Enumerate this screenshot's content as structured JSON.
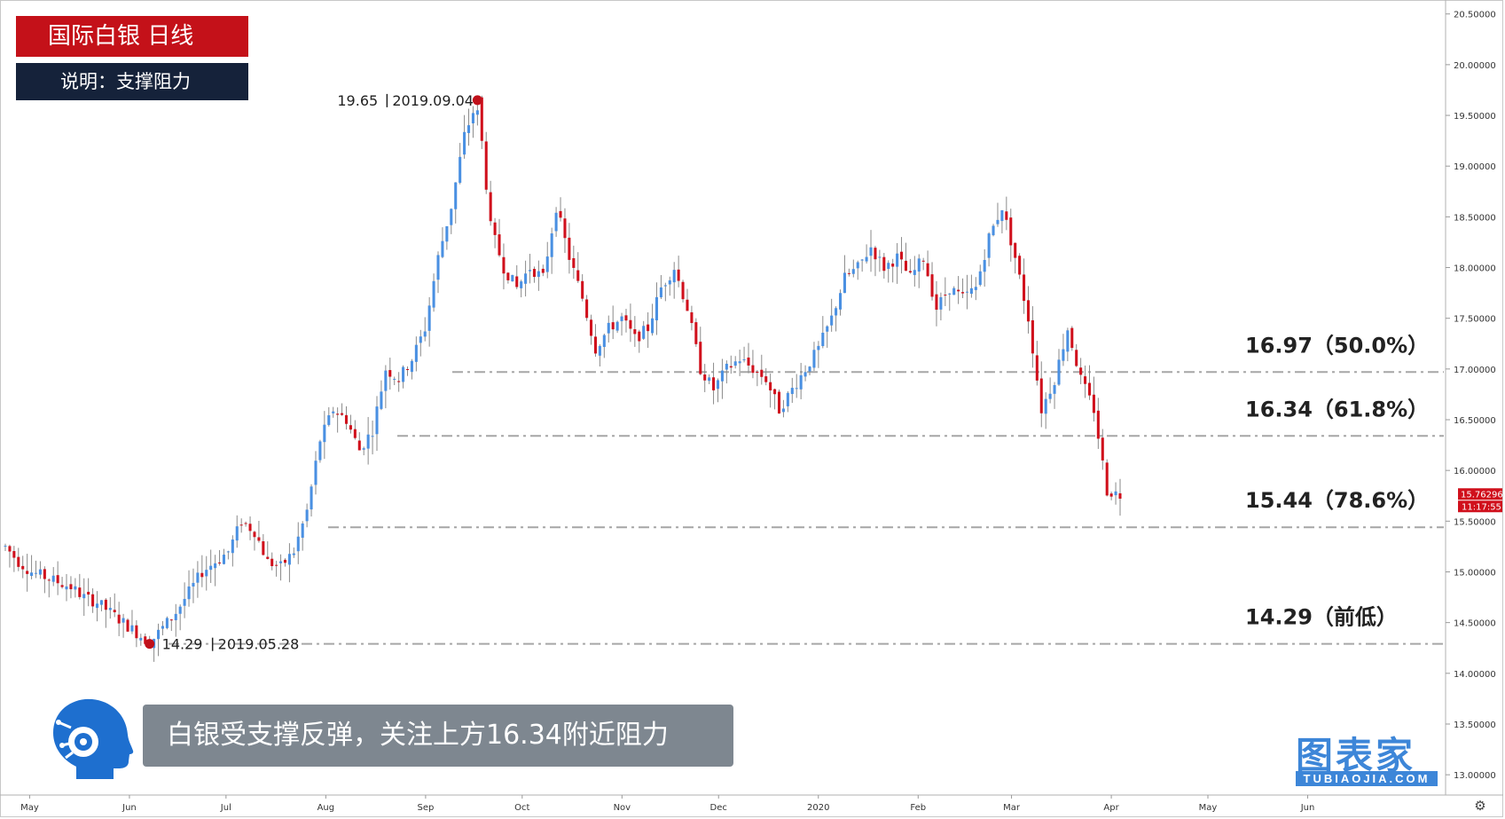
{
  "header": {
    "title": "国际白银 日线",
    "subtitle": "说明：支撑阻力"
  },
  "caption": "白银受支撑反弹，关注上方16.34附近阻力",
  "watermark": {
    "text": "图表家",
    "sub": "TUBIAOJIA.COM"
  },
  "icons": {
    "logo": "ai-head-logo-icon",
    "settings": "gear-icon"
  },
  "colors": {
    "up": "#4a90e2",
    "down": "#d0101c",
    "title_bg": "#c41119",
    "subtitle_bg": "#15223a",
    "caption_bg": "#7e8790",
    "level_line": "#a6a6a6",
    "price_badge": "#d0101c"
  },
  "chart_data": {
    "type": "candlestick",
    "instrument": "国际白银 日线",
    "ylim": [
      12.8,
      20.55
    ],
    "y_ticks": [
      "20.50000",
      "20.00000",
      "19.50000",
      "19.00000",
      "18.50000",
      "18.00000",
      "17.50000",
      "17.00000",
      "16.50000",
      "16.00000",
      "15.50000",
      "15.00000",
      "14.50000",
      "14.00000",
      "13.50000",
      "13.00000"
    ],
    "x_ticks": [
      "May",
      "Jun",
      "Jul",
      "Aug",
      "Sep",
      "Oct",
      "Nov",
      "Dec",
      "2020",
      "Feb",
      "Mar",
      "Apr",
      "May",
      "Jun"
    ],
    "current_price": "15.76296",
    "countdown": "11:17:55",
    "annotations": [
      {
        "label": "19.65",
        "date": "2019.09.04",
        "value": 19.65
      },
      {
        "label": "14.29",
        "date": "2019.05.28",
        "value": 14.29
      }
    ],
    "levels": [
      {
        "value": 16.97,
        "label": "16.97（50.0%）"
      },
      {
        "value": 16.34,
        "label": "16.34（61.8%）"
      },
      {
        "value": 15.44,
        "label": "15.44（78.6%）"
      },
      {
        "value": 14.29,
        "label": "14.29（前低）"
      }
    ],
    "anchors": [
      15.25,
      15.1,
      15.0,
      14.95,
      14.9,
      14.85,
      14.75,
      14.7,
      14.6,
      14.5,
      14.4,
      14.3,
      14.45,
      14.6,
      14.8,
      15.0,
      15.1,
      15.2,
      15.5,
      15.4,
      15.1,
      15.05,
      15.2,
      15.6,
      16.3,
      16.6,
      16.5,
      16.2,
      16.4,
      17.0,
      16.9,
      17.1,
      17.4,
      18.1,
      18.6,
      19.3,
      19.65,
      18.4,
      18.0,
      17.8,
      18.0,
      17.9,
      18.6,
      18.1,
      17.7,
      17.2,
      17.4,
      17.5,
      17.3,
      17.4,
      17.8,
      18.0,
      17.6,
      17.0,
      16.8,
      17.0,
      17.1,
      17.0,
      16.9,
      16.6,
      16.8,
      17.0,
      17.2,
      17.5,
      17.9,
      18.0,
      18.2,
      18.0,
      18.1,
      17.9,
      18.1,
      17.6,
      17.8,
      17.7,
      17.8,
      18.3,
      18.6,
      18.1,
      17.5,
      16.6,
      16.9,
      17.4,
      16.9,
      16.6,
      15.8,
      15.76
    ],
    "tick_dates": [
      "2019-05-01",
      "2019-06-01",
      "2019-07-01",
      "2019-08-01",
      "2019-09-01",
      "2019-10-01",
      "2019-11-01",
      "2019-12-01",
      "2020-01-01",
      "2020-02-01",
      "2020-03-01",
      "2020-04-01",
      "2020-05-01",
      "2020-06-01"
    ]
  }
}
